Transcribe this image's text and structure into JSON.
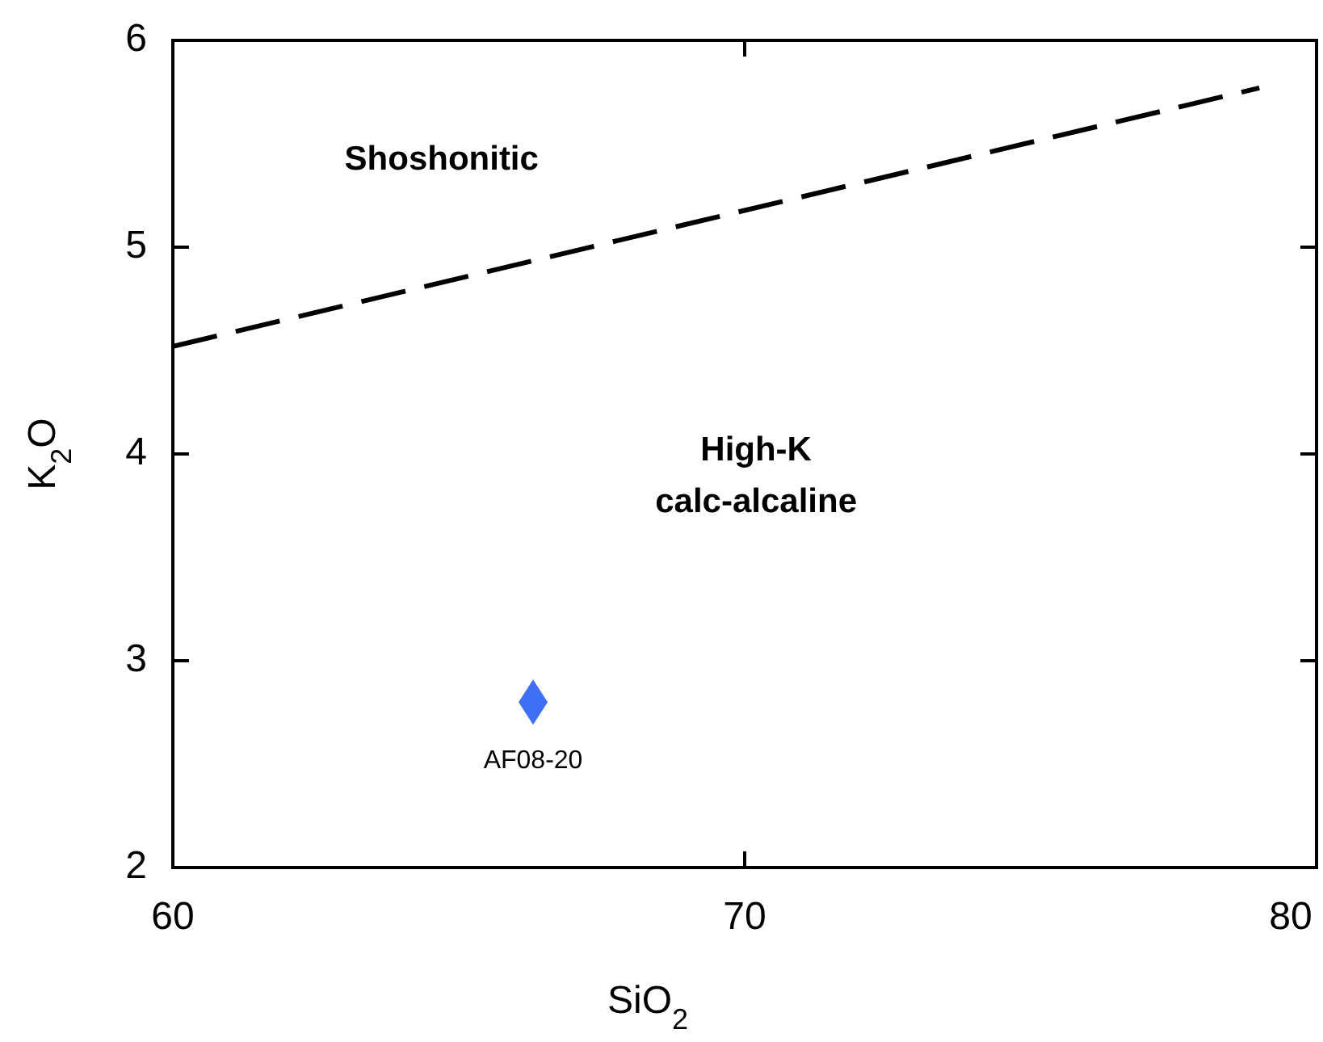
{
  "chart_data": {
    "type": "scatter",
    "xlabel": "SiO$_{2}$",
    "ylabel": "K$_{2}$O",
    "xlim": [
      60,
      80
    ],
    "ylim": [
      2,
      6
    ],
    "xticks": [
      60,
      70,
      80
    ],
    "yticks": [
      2,
      3,
      4,
      5,
      6
    ],
    "grid": false,
    "series": [
      {
        "type": "line",
        "x": [
          60,
          79
        ],
        "values": [
          4.52,
          5.77
        ],
        "color": "#000000",
        "line_style": "dashed",
        "marker": "none"
      },
      {
        "name": "AF08-20",
        "x": [
          66.3
        ],
        "values": [
          2.8
        ],
        "color": "#3f6ff5",
        "marker": "diamond"
      }
    ],
    "annotations": [
      "Shoshonitic",
      "High-K\ncalc-alcaline"
    ]
  }
}
